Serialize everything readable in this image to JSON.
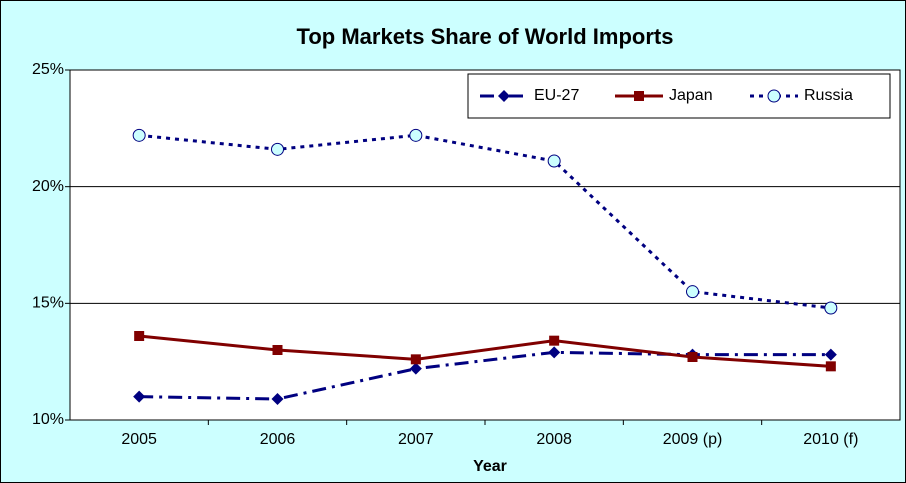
{
  "chart_data": {
    "type": "line",
    "title": "Top Markets Share of World Imports",
    "x_label": "Year",
    "categories": [
      "2005",
      "2006",
      "2007",
      "2008",
      "2009 (p)",
      "2010 (f)"
    ],
    "series": [
      {
        "name": "EU-27",
        "color": "#000080",
        "marker": "diamond",
        "dash": "dashdot",
        "values": [
          11.0,
          10.9,
          12.2,
          12.9,
          12.8,
          12.8
        ]
      },
      {
        "name": "Japan",
        "color": "#800000",
        "marker": "square",
        "dash": "solid",
        "values": [
          13.6,
          13.0,
          12.6,
          13.4,
          12.7,
          12.3
        ]
      },
      {
        "name": "Russia",
        "color": "#000080",
        "marker": "circle",
        "dash": "dotted",
        "values": [
          22.2,
          21.6,
          22.2,
          21.1,
          15.5,
          14.8
        ]
      }
    ],
    "ylim": [
      10,
      25
    ],
    "yticks": [
      {
        "value": 10,
        "label": "10%"
      },
      {
        "value": 15,
        "label": "15%"
      },
      {
        "value": 20,
        "label": "20%"
      },
      {
        "value": 25,
        "label": "25%"
      }
    ],
    "grid": true,
    "legend": "upper right"
  }
}
